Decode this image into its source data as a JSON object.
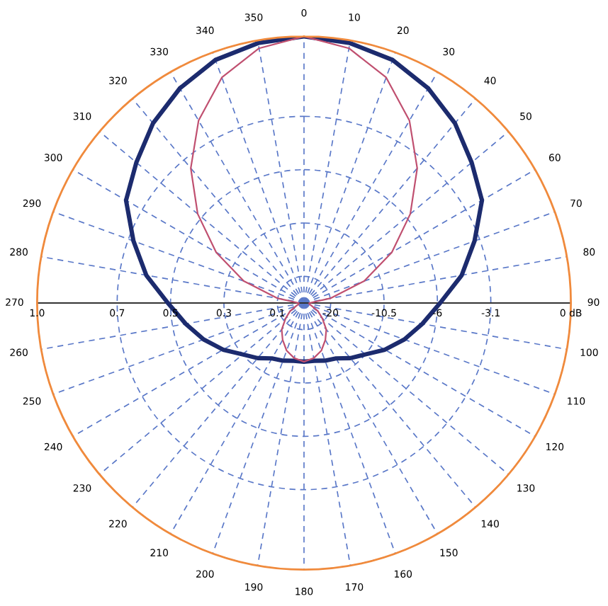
{
  "chart_data": {
    "type": "radar",
    "categories": [
      "0",
      "10",
      "20",
      "30",
      "40",
      "50",
      "60",
      "70",
      "80",
      "90",
      "100",
      "110",
      "120",
      "130",
      "140",
      "150",
      "160",
      "170",
      "180",
      "190",
      "200",
      "210",
      "220",
      "230",
      "240",
      "250",
      "260",
      "270",
      "280",
      "290",
      "300",
      "310",
      "320",
      "330",
      "340",
      "350"
    ],
    "ylim": [
      0,
      1
    ],
    "yticks": [
      {
        "value": 1.0,
        "label": "1.0"
      },
      {
        "value": 0.7,
        "label": "0.7"
      },
      {
        "value": 0.5,
        "label": "0.5"
      },
      {
        "value": 0.3,
        "label": "0.3"
      },
      {
        "value": 0.1,
        "label": "0.1"
      }
    ],
    "annotations": [
      "0 dB",
      "-3.1",
      "-6",
      "-10.5",
      "-20"
    ],
    "grid": true,
    "series": [
      {
        "color": "#1c2b6e",
        "values": [
          1.0,
          0.99,
          0.97,
          0.93,
          0.88,
          0.82,
          0.77,
          0.68,
          0.6,
          0.51,
          0.45,
          0.4,
          0.35,
          0.3,
          0.27,
          0.24,
          0.23,
          0.22,
          0.22,
          0.22,
          0.23,
          0.24,
          0.27,
          0.3,
          0.35,
          0.4,
          0.45,
          0.51,
          0.6,
          0.68,
          0.77,
          0.82,
          0.88,
          0.93,
          0.97,
          0.99
        ]
      },
      {
        "color": "#c05070",
        "values": [
          1.0,
          0.97,
          0.9,
          0.79,
          0.66,
          0.52,
          0.38,
          0.24,
          0.1,
          0.02,
          0.02,
          0.03,
          0.06,
          0.09,
          0.13,
          0.16,
          0.19,
          0.21,
          0.22,
          0.21,
          0.19,
          0.16,
          0.13,
          0.09,
          0.06,
          0.03,
          0.02,
          0.02,
          0.1,
          0.24,
          0.38,
          0.52,
          0.66,
          0.79,
          0.9,
          0.97
        ]
      }
    ]
  }
}
